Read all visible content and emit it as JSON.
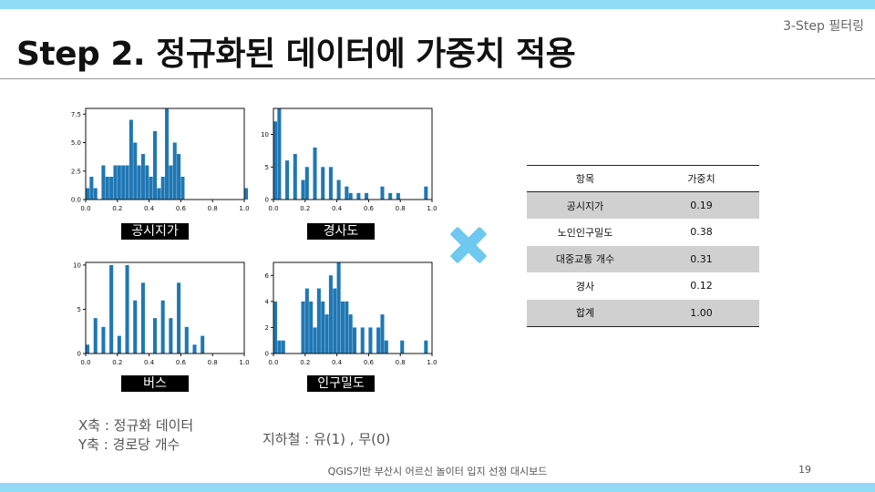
{
  "header": {
    "step_tag": "3-Step 필터링",
    "title": "Step 2. 정규화된 데이터에 가중치 적용"
  },
  "colors": {
    "accent_bar": "#8fdcf6",
    "bar_fill": "#1f77b4",
    "row_shade": "#d0d0d0"
  },
  "chart_data": [
    {
      "type": "bar",
      "title": "공시지가",
      "xlim": [
        0,
        1
      ],
      "ylim": [
        0,
        8
      ],
      "xticks": [
        "0.0",
        "0.2",
        "0.4",
        "0.6",
        "0.8",
        "1.0"
      ],
      "yticks": [
        "0.0",
        "2.5",
        "5.0",
        "7.5"
      ],
      "bin_width": 0.025,
      "values": [
        1,
        2,
        1,
        0,
        3,
        2,
        2,
        3,
        3,
        3,
        3,
        7,
        5,
        3,
        4,
        3,
        2,
        6,
        1,
        2,
        8,
        3,
        5,
        4,
        2,
        0,
        0,
        0,
        0,
        0,
        0,
        0,
        0,
        0,
        0,
        0,
        0,
        0,
        0,
        0,
        1
      ]
    },
    {
      "type": "bar",
      "title": "경사도",
      "xlim": [
        0,
        1
      ],
      "ylim": [
        0,
        14
      ],
      "xticks": [
        "0.0",
        "0.2",
        "0.4",
        "0.6",
        "0.8",
        "1.0"
      ],
      "yticks": [
        "0",
        "5",
        "10"
      ],
      "bin_width": 0.025,
      "values": [
        12,
        14,
        0,
        6,
        0,
        7,
        0,
        3,
        5,
        0,
        8,
        0,
        5,
        0,
        5,
        0,
        3,
        0,
        2,
        1,
        0,
        1,
        0,
        1,
        0,
        0,
        0,
        2,
        0,
        1,
        0,
        1,
        0,
        0,
        0,
        0,
        0,
        0,
        2,
        0,
        0
      ]
    },
    {
      "type": "bar",
      "title": "버스",
      "xlim": [
        0,
        1
      ],
      "ylim": [
        0,
        10.3
      ],
      "xticks": [
        "0.0",
        "0.2",
        "0.4",
        "0.6",
        "0.8",
        "1.0"
      ],
      "yticks": [
        "0",
        "5",
        "10"
      ],
      "bin_width": 0.025,
      "values": [
        1,
        0,
        4,
        0,
        3,
        0,
        10,
        0,
        2,
        0,
        10,
        0,
        6,
        0,
        8,
        0,
        0,
        4,
        0,
        6,
        0,
        4,
        0,
        8,
        0,
        3,
        0,
        1,
        0,
        2
      ]
    },
    {
      "type": "bar",
      "title": "인구밀도",
      "xlim": [
        0,
        1
      ],
      "ylim": [
        0,
        7
      ],
      "xticks": [
        "0.0",
        "0.2",
        "0.4",
        "0.6",
        "0.8",
        "1.0"
      ],
      "yticks": [
        "0",
        "2",
        "4",
        "6"
      ],
      "bin_width": 0.025,
      "values": [
        4,
        1,
        1,
        0,
        0,
        0,
        0,
        4,
        5,
        4,
        2,
        5,
        4,
        3,
        6,
        5,
        7,
        4,
        4,
        3,
        2,
        0,
        2,
        0,
        2,
        0,
        2,
        3,
        1,
        0,
        0,
        0,
        1,
        0,
        0,
        0,
        0,
        0,
        1,
        0,
        0
      ]
    }
  ],
  "chart_labels": [
    "공시지가",
    "경사도",
    "버스",
    "인구밀도"
  ],
  "table": {
    "headers": [
      "항목",
      "가중치"
    ],
    "rows": [
      [
        "공시지가",
        "0.19"
      ],
      [
        "노인인구밀도",
        "0.38"
      ],
      [
        "대중교통 개수",
        "0.31"
      ],
      [
        "경사",
        "0.12"
      ],
      [
        "합계",
        "1.00"
      ]
    ]
  },
  "notes": {
    "x_axis": "X축 : 정규화 데이터",
    "y_axis": "Y축 : 경로당 개수",
    "subway": "지하철 : 유(1) , 무(0)"
  },
  "footer": {
    "text": "QGIS기반 부산시 어르신 놀이터 입지 선정 대시보드",
    "page": "19"
  }
}
